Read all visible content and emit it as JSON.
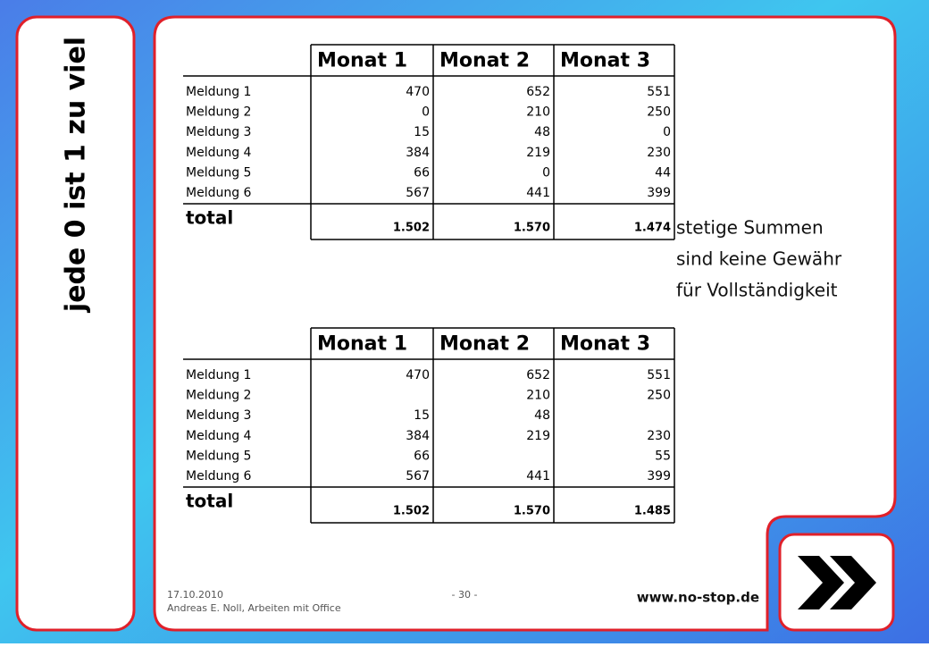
{
  "side_title": "jede 0 ist 1 zu viel",
  "tables": [
    {
      "header": [
        null,
        "Monat 1",
        "Monat 2",
        "Monat 3"
      ],
      "rows": [
        [
          "Meldung 1",
          "470",
          "652",
          "551"
        ],
        [
          "Meldung 2",
          "0",
          "210",
          "250"
        ],
        [
          "Meldung 3",
          "15",
          "48",
          "0"
        ],
        [
          "Meldung 4",
          "384",
          "219",
          "230"
        ],
        [
          "Meldung 5",
          "66",
          "0",
          "44"
        ],
        [
          "Meldung 6",
          "567",
          "441",
          "399"
        ]
      ],
      "total": [
        "total",
        "1.502",
        "1.570",
        "1.474"
      ]
    },
    {
      "header": [
        null,
        "Monat 1",
        "Monat 2",
        "Monat 3"
      ],
      "rows": [
        [
          "Meldung 1",
          "470",
          "652",
          "551"
        ],
        [
          "Meldung 2",
          null,
          "210",
          "250"
        ],
        [
          "Meldung 3",
          "15",
          "48",
          null
        ],
        [
          "Meldung 4",
          "384",
          "219",
          "230"
        ],
        [
          "Meldung 5",
          "66",
          null,
          "55"
        ],
        [
          "Meldung 6",
          "567",
          "441",
          "399"
        ]
      ],
      "total": [
        "total",
        "1.502",
        "1.570",
        "1.485"
      ]
    }
  ],
  "note": [
    "stetige Summen",
    "sind keine Gewähr",
    "für Vollständigkeit"
  ],
  "footer": {
    "date": "17.10.2010",
    "author": "Andreas E. Noll, Arbeiten mit Office",
    "page": "- 30 -",
    "url": "www.no-stop.de"
  }
}
